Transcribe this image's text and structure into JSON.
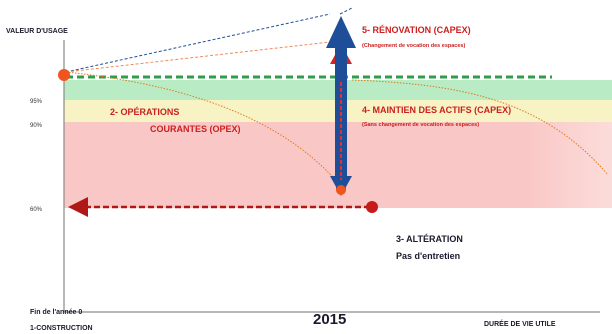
{
  "axes": {
    "y_label": "VALEUR D'USAGE",
    "x_label": "DURÉE DE VIE UTILE",
    "origin_line1": "Fin de l'année 0",
    "origin_line2": "1-CONSTRUCTION",
    "year": "2015"
  },
  "levels": {
    "p95": "95%",
    "p90": "90%",
    "p60": "60%"
  },
  "annotations": {
    "renovation_title": "5- RÉNOVATION (CAPEX)",
    "renovation_sub": "(Changement de vocation des espaces)",
    "maintien_title": "4- MAINTIEN DES ACTIFS (CAPEX)",
    "maintien_sub": "(Sans changement de vocation des espaces)",
    "operations_line1": "2- OPÉRATIONS",
    "operations_line2": "COURANTES (OPEX)",
    "alteration_line1": "3- ALTÉRATION",
    "alteration_line2": "Pas d'entretien"
  },
  "colors": {
    "band_green": "#b9ecc4",
    "band_yellow": "#f7f3c4",
    "band_red": "#f9c8c6",
    "green_dash": "#2e9e48",
    "red_dash": "#b01818",
    "blue_arrow": "#1f4e99",
    "orange_dot": "#f0551f",
    "red_text": "#cc1f1f",
    "dark_text": "#1a1a2e"
  }
}
